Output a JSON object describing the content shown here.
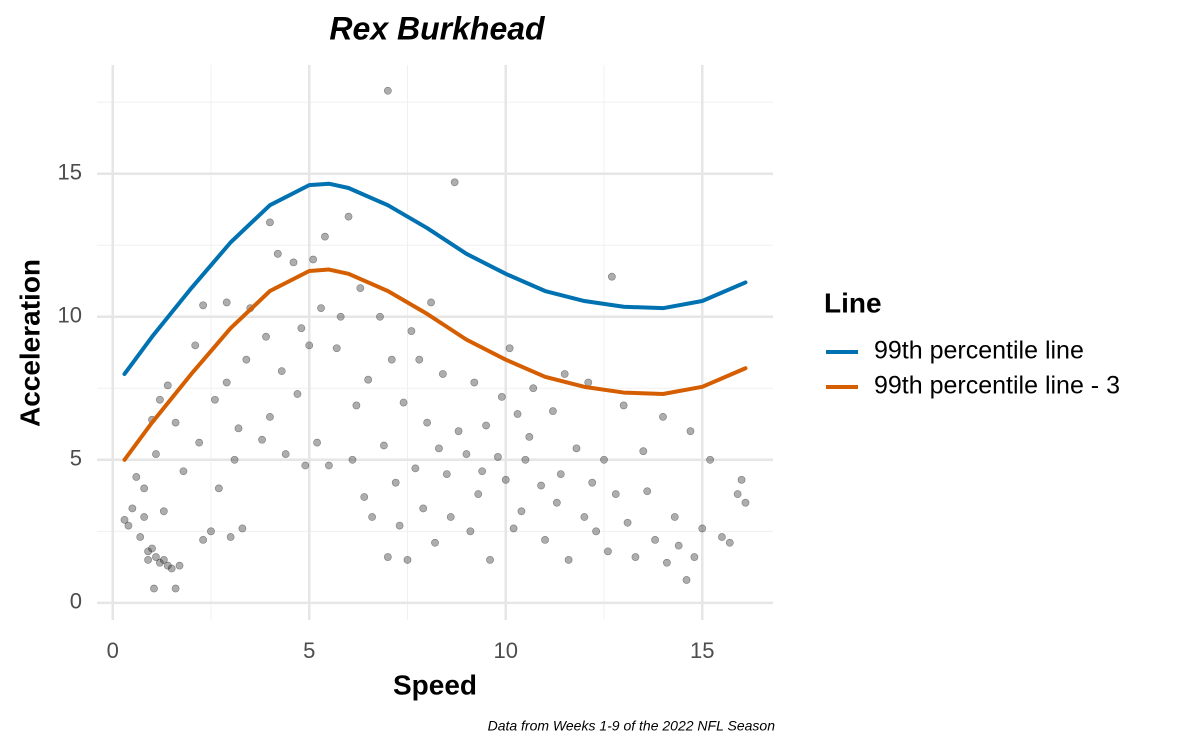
{
  "chart_data": {
    "type": "scatter-line",
    "title": "Rex Burkhead",
    "caption": "Data from Weeks 1-9 of the 2022 NFL Season",
    "x_label": "Speed",
    "y_label": "Acceleration",
    "xlim": [
      -0.4,
      16.8
    ],
    "ylim": [
      -0.6,
      18.8
    ],
    "xticks": [
      0,
      5,
      10,
      15
    ],
    "yticks": [
      0,
      5,
      10,
      15
    ],
    "x_minor_ticks": [
      2.5,
      7.5,
      12.5
    ],
    "y_minor_ticks": [
      2.5,
      7.5,
      12.5,
      17.5
    ],
    "grid": true,
    "legend_title": "Line",
    "legend_position": "right",
    "points": {
      "color": "#333333",
      "x": [
        0.3,
        0.4,
        0.5,
        0.6,
        0.7,
        0.8,
        0.8,
        0.9,
        0.9,
        1.0,
        1.0,
        1.05,
        1.1,
        1.1,
        1.2,
        1.2,
        1.3,
        1.3,
        1.4,
        1.4,
        1.5,
        1.6,
        1.6,
        1.7,
        1.8,
        2.1,
        2.2,
        2.3,
        2.3,
        2.5,
        2.6,
        2.7,
        2.9,
        2.9,
        3.0,
        3.1,
        3.2,
        3.3,
        3.4,
        3.5,
        3.8,
        3.9,
        4.0,
        4.0,
        4.2,
        4.3,
        4.4,
        4.6,
        4.7,
        4.8,
        4.9,
        5.0,
        5.1,
        5.2,
        5.3,
        5.4,
        5.5,
        5.7,
        5.8,
        6.0,
        6.1,
        6.3,
        6.4,
        6.5,
        6.6,
        6.8,
        6.9,
        7.0,
        7.0,
        7.1,
        7.2,
        7.3,
        7.4,
        7.5,
        7.6,
        7.7,
        7.9,
        8.0,
        8.1,
        8.2,
        8.4,
        8.5,
        8.6,
        8.7,
        8.8,
        9.0,
        9.1,
        9.2,
        9.3,
        9.5,
        9.6,
        9.8,
        10.0,
        10.1,
        10.2,
        10.3,
        10.4,
        10.6,
        10.7,
        10.9,
        11.0,
        11.2,
        11.3,
        11.5,
        11.6,
        11.8,
        12.0,
        12.1,
        12.3,
        12.5,
        12.6,
        12.7,
        12.8,
        13.0,
        13.1,
        13.3,
        13.5,
        13.6,
        13.8,
        14.0,
        14.1,
        14.3,
        14.4,
        14.6,
        14.7,
        14.8,
        15.0,
        15.2,
        15.5,
        15.7,
        15.9,
        16.0,
        16.1,
        7.8,
        8.3,
        9.4,
        10.5,
        9.9,
        11.4,
        6.2,
        12.2
      ],
      "y": [
        2.9,
        2.7,
        3.3,
        4.4,
        2.3,
        4.0,
        3.0,
        1.8,
        1.5,
        1.9,
        6.4,
        0.5,
        1.6,
        5.2,
        1.4,
        7.1,
        1.5,
        3.2,
        1.3,
        7.6,
        1.2,
        0.5,
        6.3,
        1.3,
        4.6,
        9.0,
        5.6,
        10.4,
        2.2,
        2.5,
        7.1,
        4.0,
        10.5,
        7.7,
        2.3,
        5.0,
        6.1,
        2.6,
        8.5,
        10.3,
        5.7,
        9.3,
        13.3,
        6.5,
        12.2,
        8.1,
        5.2,
        11.9,
        7.3,
        9.6,
        4.8,
        9.0,
        12.0,
        5.6,
        10.3,
        12.8,
        4.8,
        8.9,
        10.0,
        13.5,
        5.0,
        11.0,
        3.7,
        7.8,
        3.0,
        10.0,
        5.5,
        17.9,
        1.6,
        8.5,
        4.2,
        2.7,
        7.0,
        1.5,
        9.5,
        4.7,
        3.3,
        6.3,
        10.5,
        2.1,
        8.0,
        4.5,
        3.0,
        14.7,
        6.0,
        5.2,
        2.5,
        7.7,
        3.8,
        6.2,
        1.5,
        5.1,
        4.3,
        8.9,
        2.6,
        6.6,
        3.2,
        5.8,
        7.5,
        4.1,
        2.2,
        6.7,
        3.5,
        8.0,
        1.5,
        5.4,
        3.0,
        7.7,
        2.5,
        5.0,
        1.8,
        11.4,
        3.8,
        6.9,
        2.8,
        1.6,
        5.3,
        3.9,
        2.2,
        6.5,
        1.4,
        3.0,
        2.0,
        0.8,
        6.0,
        1.6,
        2.6,
        5.0,
        2.3,
        2.1,
        3.8,
        4.3,
        3.5,
        8.5,
        5.4,
        4.6,
        5.0,
        7.2,
        4.5,
        6.9,
        4.2
      ]
    },
    "series": [
      {
        "name": "99th percentile line",
        "color": "#0072b2",
        "x": [
          0.3,
          1,
          2,
          3,
          4,
          5,
          5.5,
          6,
          7,
          8,
          9,
          10,
          11,
          12,
          13,
          14,
          15,
          16.1
        ],
        "values": [
          8.0,
          9.3,
          11.0,
          12.6,
          13.9,
          14.6,
          14.65,
          14.5,
          13.9,
          13.1,
          12.2,
          11.5,
          10.9,
          10.55,
          10.35,
          10.3,
          10.55,
          11.2
        ]
      },
      {
        "name": "99th percentile line - 3",
        "color": "#d55e00",
        "x": [
          0.3,
          1,
          2,
          3,
          4,
          5,
          5.5,
          6,
          7,
          8,
          9,
          10,
          11,
          12,
          13,
          14,
          15,
          16.1
        ],
        "values": [
          5.0,
          6.3,
          8.0,
          9.6,
          10.9,
          11.6,
          11.65,
          11.5,
          10.9,
          10.1,
          9.2,
          8.5,
          7.9,
          7.55,
          7.35,
          7.3,
          7.55,
          8.2
        ]
      }
    ]
  }
}
